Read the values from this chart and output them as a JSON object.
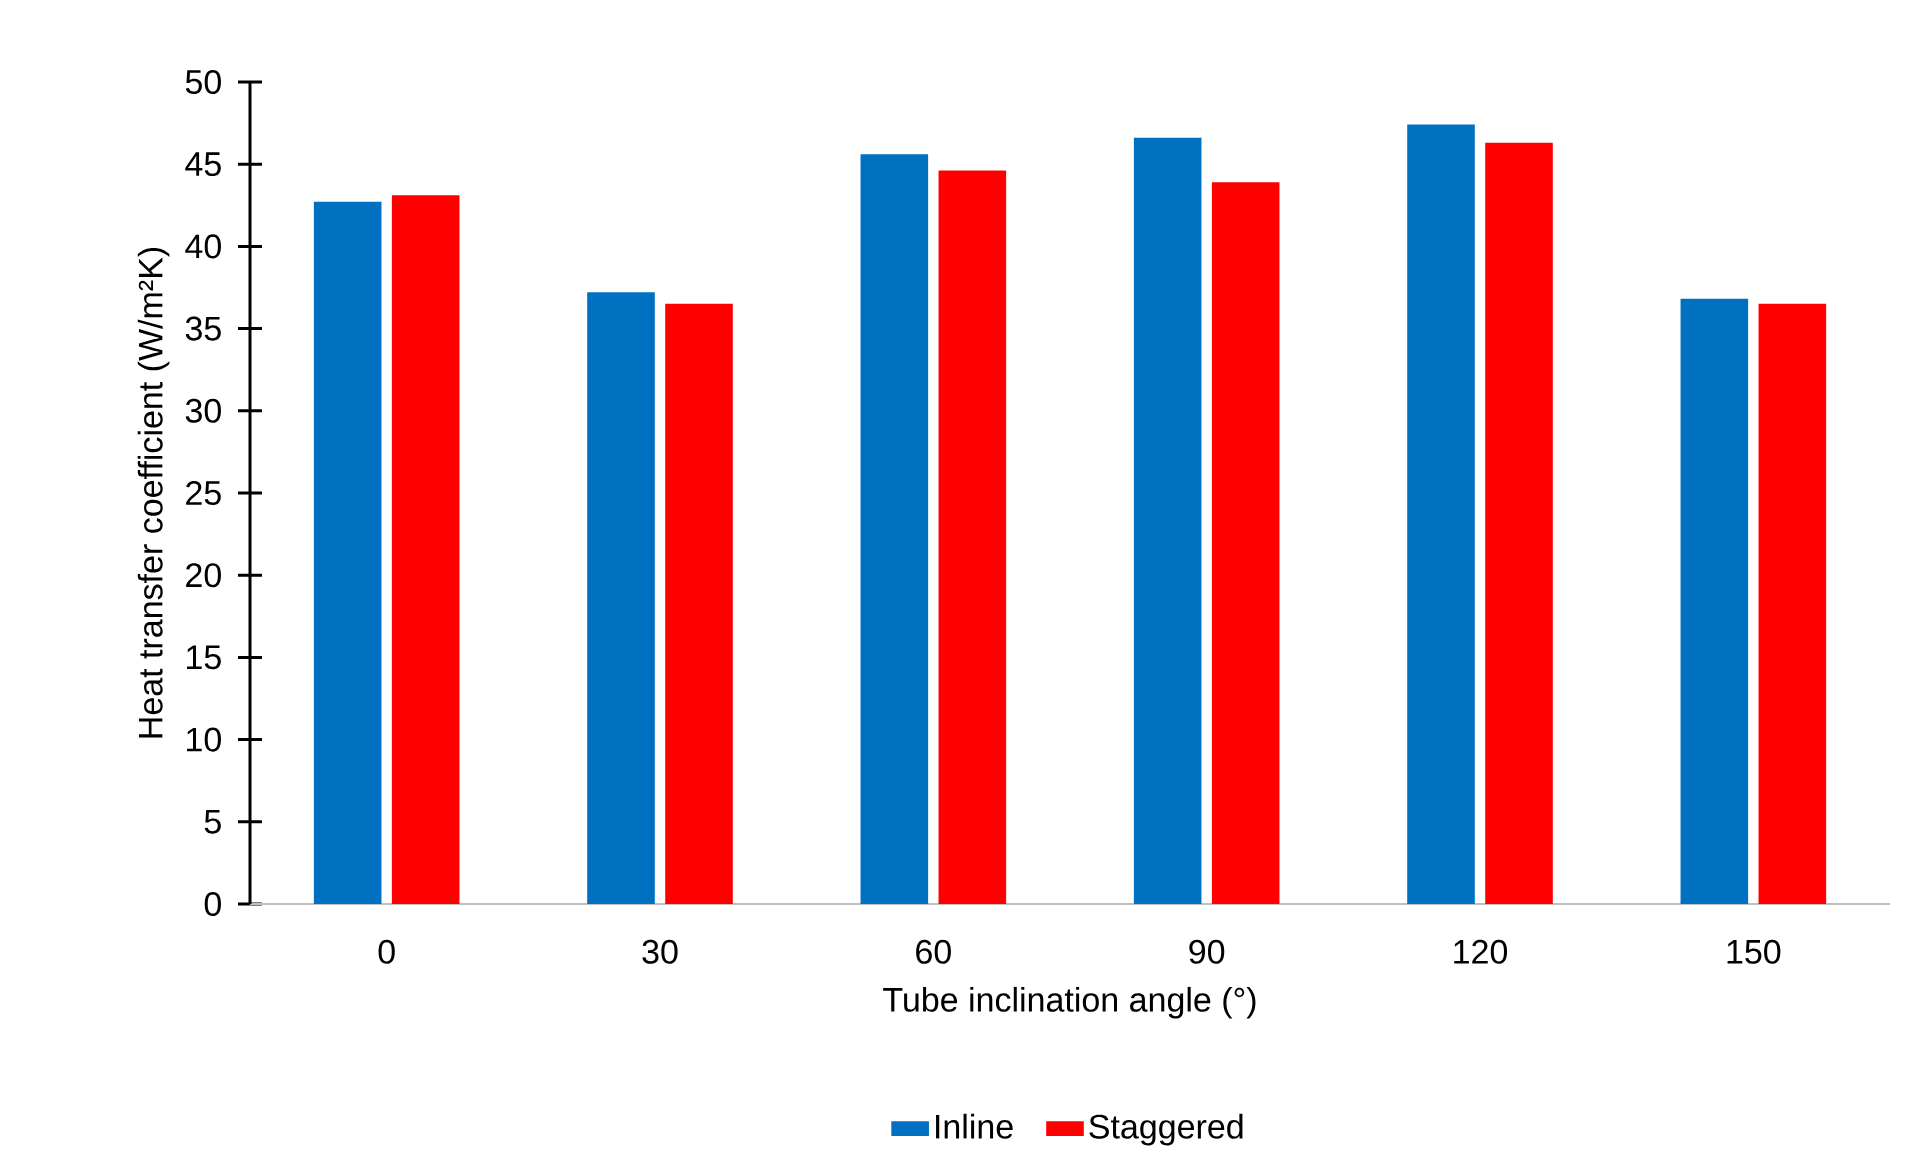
{
  "chart_data": {
    "type": "bar",
    "xlabel": "Tube inclination angle (°)",
    "ylabel": "Heat transfer coefficient (W/m²K)",
    "categories": [
      "0",
      "30",
      "60",
      "90",
      "120",
      "150"
    ],
    "series": [
      {
        "name": "Inline",
        "color": "#0070c0",
        "values": [
          42.6,
          37.1,
          45.5,
          46.5,
          47.3,
          36.7
        ]
      },
      {
        "name": "Staggered",
        "color": "#ff0000",
        "values": [
          43.0,
          36.4,
          44.5,
          43.8,
          46.2,
          36.4
        ]
      }
    ],
    "ylim": [
      0,
      50
    ],
    "yticks": [
      0,
      5,
      10,
      15,
      20,
      25,
      30,
      35,
      40,
      45,
      50
    ],
    "grid": false,
    "legend": "bottom"
  }
}
